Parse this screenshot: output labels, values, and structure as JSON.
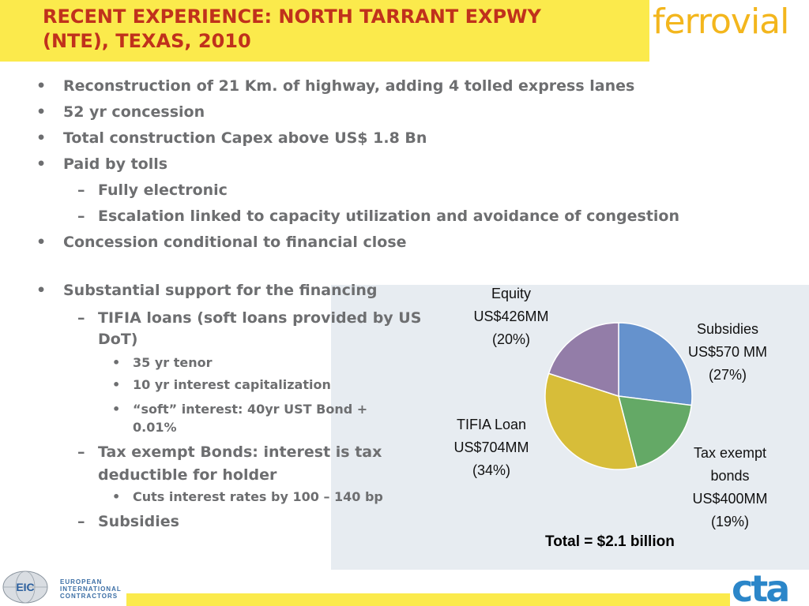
{
  "title": {
    "line1": "RECENT EXPERIENCE: NORTH TARRANT EXPWY",
    "line2": "(NTE), TEXAS, 2010"
  },
  "logo": "ferrovial",
  "bullets": {
    "b1": "Reconstruction of 21 Km. of highway, adding 4 tolled express lanes",
    "b2": "52 yr concession",
    "b3": "Total construction Capex above US$ 1.8 Bn",
    "b4": "Paid by tolls",
    "b4a": "Fully electronic",
    "b4b": "Escalation linked to capacity utilization and avoidance of congestion",
    "b5": "Concession conditional to financial close",
    "b6": "Substantial support for the financing",
    "b6a": "TIFIA loans (soft loans provided by US DoT)",
    "b6a1": "35 yr tenor",
    "b6a2": "10 yr interest capitalization",
    "b6a3": "“soft” interest: 40yr UST Bond + 0.01%",
    "b6b": "Tax exempt Bonds: interest is tax deductible for holder",
    "b6b1": "Cuts interest rates by 100 – 140 bp",
    "b6c": "Subsidies"
  },
  "markers": {
    "bullet": "•",
    "dash": "–"
  },
  "chart_data": {
    "type": "pie",
    "slices": [
      {
        "label": "Subsidies",
        "amount": "US$570 MM",
        "pct": "(27%)",
        "value": 27,
        "color": "#6592cd"
      },
      {
        "label": "Tax exempt bonds",
        "amount": "US$400MM",
        "pct": "(19%)",
        "value": 19,
        "color": "#64a966"
      },
      {
        "label": "TIFIA Loan",
        "amount": "US$704MM",
        "pct": "(34%)",
        "value": 34,
        "color": "#d7bd39"
      },
      {
        "label": "Equity",
        "amount": "US$426MM",
        "pct": "(20%)",
        "value": 20,
        "color": "#937da8"
      }
    ],
    "total": "Total = $2.1 billion"
  },
  "footer": {
    "eic_logo": "EIC",
    "eic_line1": "EUROPEAN",
    "eic_line2": "INTERNATIONAL",
    "eic_line3": "CONTRACTORS",
    "cta_logo": "cta"
  }
}
